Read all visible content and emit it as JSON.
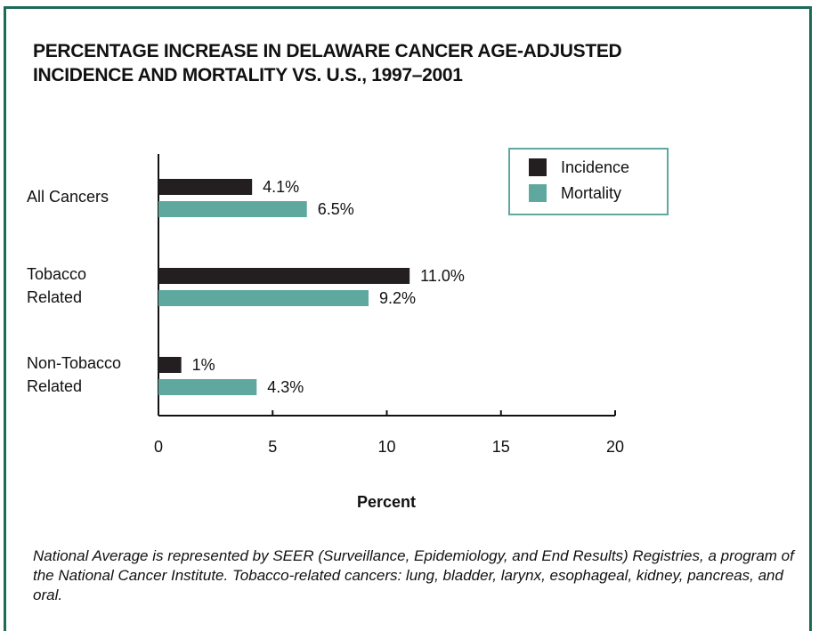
{
  "chart_data": {
    "type": "hbar",
    "title": "PERCENTAGE INCREASE IN DELAWARE CANCER AGE-ADJUSTED INCIDENCE AND MORTALITY VS. U.S., 1997–2001",
    "categories": [
      [
        "All Cancers"
      ],
      [
        "Tobacco",
        "Related"
      ],
      [
        "Non-Tobacco",
        "Related"
      ]
    ],
    "series": [
      {
        "name": "Incidence",
        "color": "#231f20",
        "values": [
          4.1,
          11.0,
          1
        ],
        "value_labels": [
          "4.1%",
          "11.0%",
          "1%"
        ]
      },
      {
        "name": "Mortality",
        "color": "#5fa8a0",
        "values": [
          6.5,
          9.2,
          4.3
        ],
        "value_labels": [
          "6.5%",
          "9.2%",
          "4.3%"
        ]
      }
    ],
    "xlabel": "Percent",
    "xlim": [
      0,
      20
    ],
    "xticks": [
      0,
      5,
      10,
      15,
      20
    ],
    "legend": "upper right",
    "note": "National Average is represented by SEER (Surveillance, Epidemiology, and End Results) Registries, a program of the National Cancer Institute. Tobacco-related cancers: lung, bladder, larynx, esophageal, kidney, pancreas, and oral."
  }
}
